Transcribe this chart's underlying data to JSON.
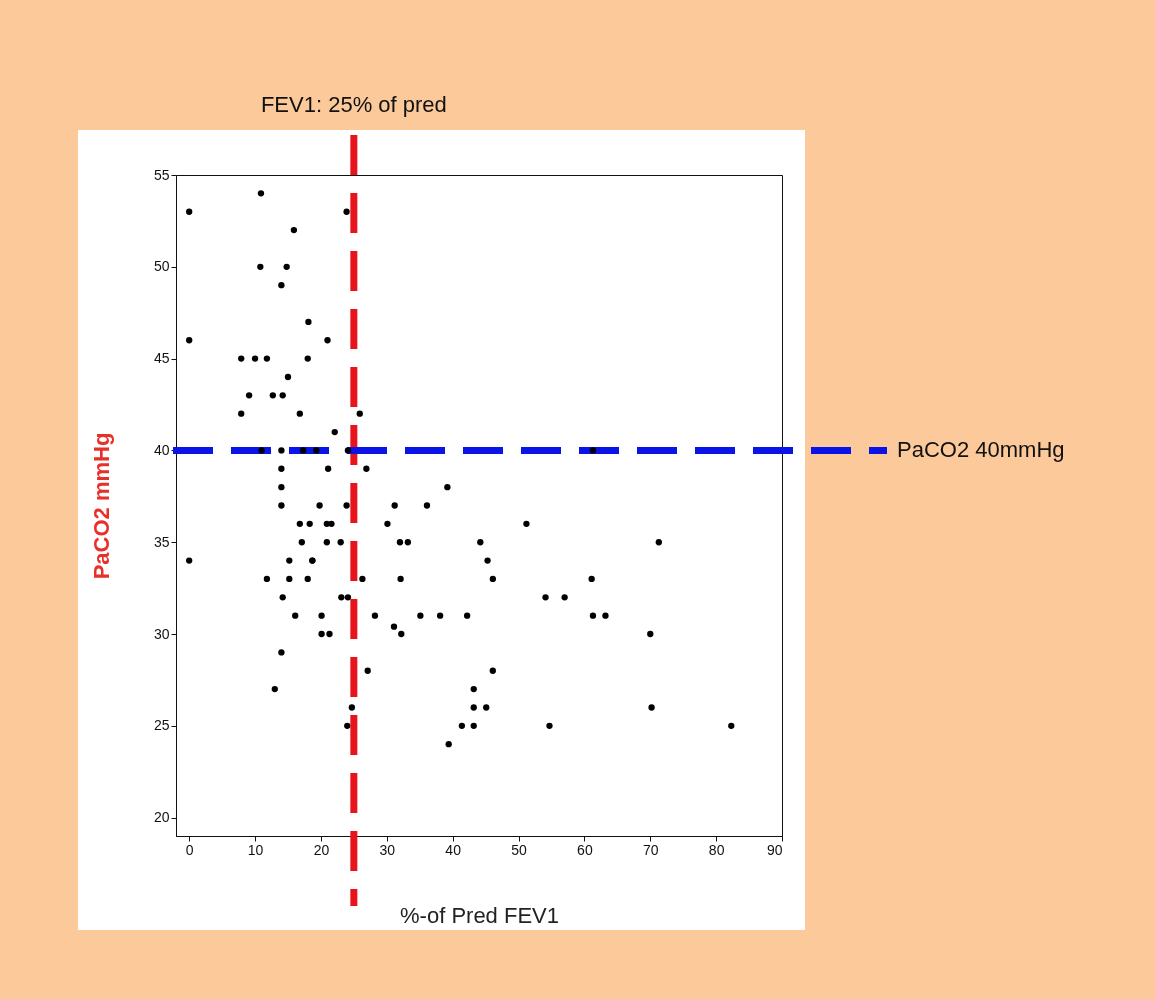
{
  "chart_data": {
    "type": "scatter",
    "xlabel": "%-of Pred FEV1",
    "ylabel": "PaCO2 mmHg",
    "xlim": [
      -2,
      90
    ],
    "xticks": [
      0,
      10,
      20,
      30,
      40,
      50,
      60,
      70,
      80,
      90
    ],
    "ylim": [
      19,
      55
    ],
    "yticks": [
      20,
      25,
      30,
      35,
      40,
      45,
      50,
      55
    ],
    "grid": false,
    "marker": "circle",
    "series": [
      {
        "color": "#000000",
        "x": [
          0,
          10.9,
          23.9,
          15.9,
          10.8,
          14.8,
          14,
          18.1,
          0,
          21,
          7.9,
          10,
          11.8,
          18,
          15,
          9.1,
          12.7,
          14.2,
          7.9,
          16.8,
          25.9,
          22.1,
          11,
          14,
          17.3,
          19.3,
          24.1,
          61.3,
          26.9,
          39.2,
          14,
          21.1,
          14,
          14,
          19.8,
          23.9,
          16.8,
          18.3,
          20.9,
          21.6,
          17.1,
          20.9,
          23,
          15.2,
          18.7,
          18.7,
          0,
          11.8,
          15.2,
          18,
          26.3,
          14.2,
          23.1,
          24.1,
          16.1,
          20.1,
          20.1,
          21.3,
          28.2,
          14,
          27.1,
          13,
          24.7,
          24,
          31.2,
          36.1,
          30.1,
          51.2,
          32,
          33.2,
          44.2,
          71.3,
          45.3,
          32.1,
          46.1,
          61.1,
          54.1,
          57,
          35.1,
          38.1,
          42.2,
          61.3,
          63.2,
          31.1,
          32.2,
          70,
          46.1,
          43.2,
          43.2,
          45.1,
          70.2,
          41.4,
          43.2,
          54.7,
          82.3,
          39.4
        ],
        "values": [
          53,
          54,
          53,
          52,
          50,
          50,
          49,
          47,
          46,
          46,
          45,
          45,
          45,
          45,
          44,
          43,
          43,
          43,
          42,
          42,
          42,
          41,
          40,
          40,
          40,
          40,
          40,
          40,
          39,
          38,
          39,
          39,
          38,
          37,
          37,
          37,
          36,
          36,
          36,
          36,
          35,
          35,
          35,
          34,
          34,
          34,
          34,
          33,
          33,
          33,
          33,
          32,
          32,
          32,
          31,
          31,
          30,
          30,
          31,
          29,
          28,
          27,
          26,
          25,
          37,
          37,
          36,
          36,
          35,
          35,
          35,
          35,
          34,
          33,
          33,
          33,
          32,
          32,
          31,
          31,
          31,
          31,
          31,
          30.4,
          30,
          30,
          28,
          27,
          26,
          26,
          26,
          25,
          25,
          25,
          25,
          24
        ]
      }
    ],
    "ref_lines": [
      {
        "axis": "x",
        "value": 25,
        "label": "FEV1: 25% of pred",
        "color": "#e8141b",
        "line_style": "dashed"
      },
      {
        "axis": "y",
        "value": 40,
        "label": "PaCO2 40mmHg",
        "color": "#0a14e6",
        "line_style": "dashed"
      }
    ]
  }
}
